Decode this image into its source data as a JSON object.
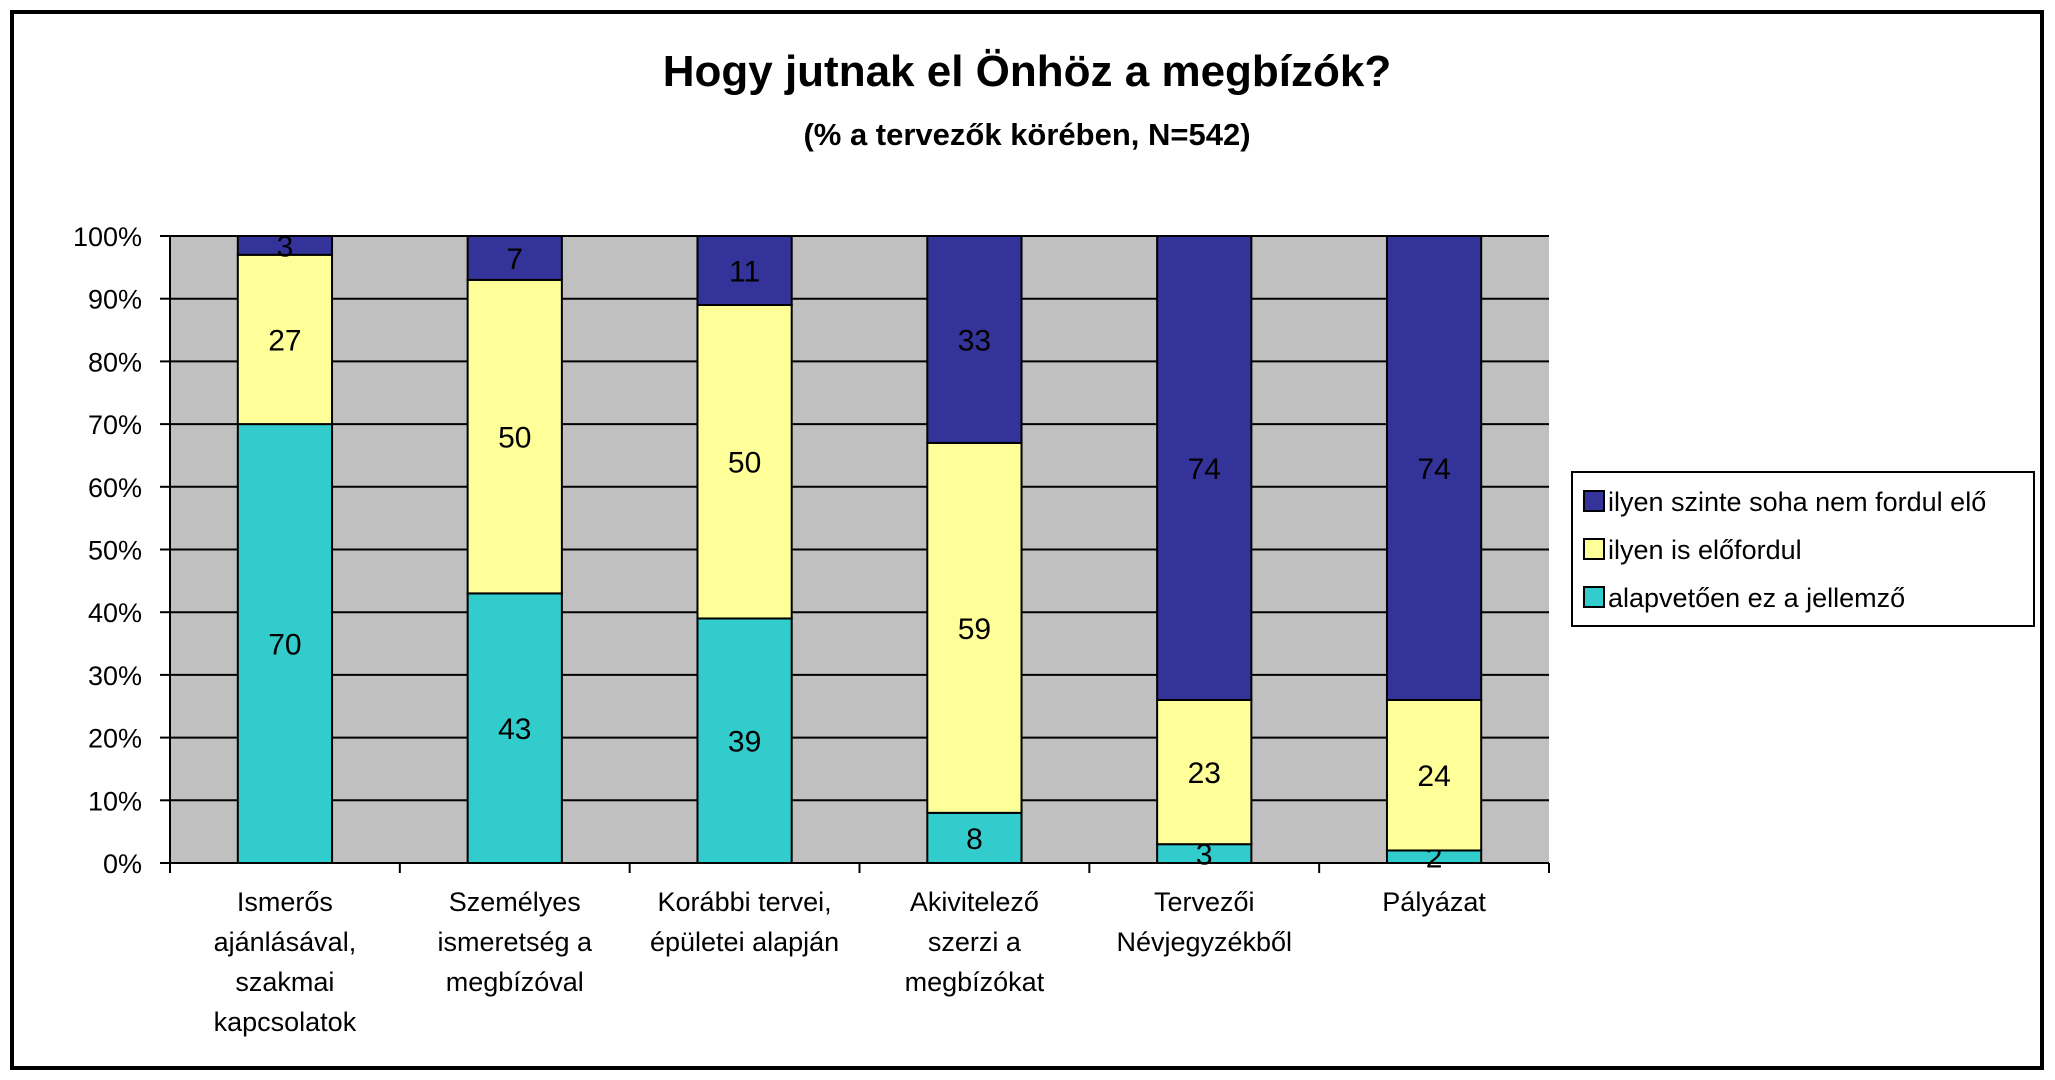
{
  "chart_data": {
    "type": "bar",
    "stacked": true,
    "percent_stacked": true,
    "title": "Hogy jutnak el Önhöz a megbízók?",
    "subtitle": "(% a tervezők körében, N=542)",
    "categories": [
      [
        "Ismerős",
        "ajánlásával,",
        "szakmai",
        "kapcsolatok"
      ],
      [
        "Személyes",
        "ismeretség a",
        "megbízóval"
      ],
      [
        "Korábbi tervei,",
        "épületei alapján"
      ],
      [
        "Akivitelező",
        "szerzi a",
        "megbízókat"
      ],
      [
        "Tervezői",
        "Névjegyzékből"
      ],
      [
        "Pályázat"
      ]
    ],
    "series": [
      {
        "name": "alapvetően ez a jellemző",
        "color": "#33CCCC",
        "values": [
          70,
          43,
          39,
          8,
          3,
          2
        ]
      },
      {
        "name": "ilyen is előfordul",
        "color": "#FFFF99",
        "values": [
          27,
          50,
          50,
          59,
          23,
          24
        ]
      },
      {
        "name": "ilyen szinte soha nem fordul elő",
        "color": "#333399",
        "values": [
          3,
          7,
          11,
          33,
          74,
          74
        ]
      }
    ],
    "ylim": [
      0,
      100
    ],
    "yticks": [
      "0%",
      "10%",
      "20%",
      "30%",
      "40%",
      "50%",
      "60%",
      "70%",
      "80%",
      "90%",
      "100%"
    ],
    "plot_background": "#C0C0C0",
    "grid": true,
    "legend_position": "right",
    "legend_order": [
      "ilyen szinte soha nem fordul elő",
      "ilyen is előfordul",
      "alapvetően ez a jellemző"
    ]
  }
}
